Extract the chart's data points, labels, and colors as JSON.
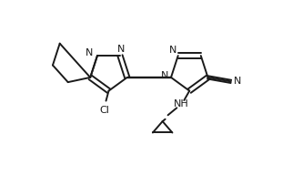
{
  "bg_color": "#ffffff",
  "line_color": "#1a1a1a",
  "line_width": 1.4,
  "figsize": [
    3.1,
    2.04
  ],
  "dpi": 100,
  "xlim": [
    0,
    10
  ],
  "ylim": [
    0,
    6.8
  ]
}
